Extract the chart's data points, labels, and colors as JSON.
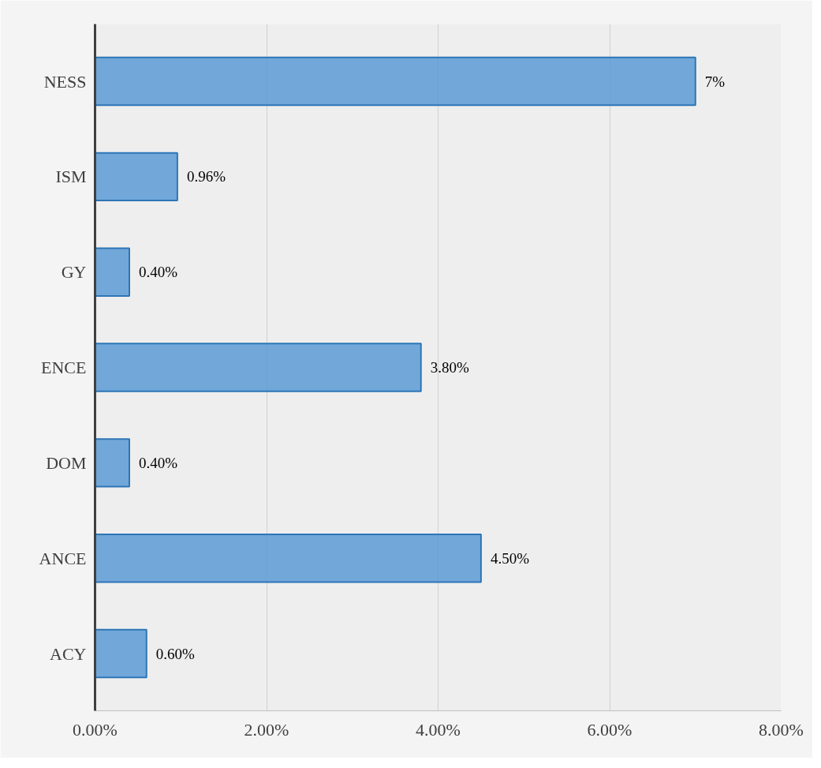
{
  "chart_data": {
    "type": "bar",
    "orientation": "horizontal",
    "categories": [
      "NESS",
      "ISM",
      "GY",
      "ENCE",
      "DOM",
      "ANCE",
      "ACY"
    ],
    "values": [
      7,
      0.96,
      0.4,
      3.8,
      0.4,
      4.5,
      0.6
    ],
    "value_labels": [
      "7%",
      "0.96%",
      "0.40%",
      "3.80%",
      "0.40%",
      "4.50%",
      "0.60%"
    ],
    "color": "#5b9bd5",
    "xlim": [
      0,
      8
    ],
    "xticks": [
      {
        "value": 0,
        "label": "0.00%"
      },
      {
        "value": 2,
        "label": "2.00%"
      },
      {
        "value": 4,
        "label": "4.00%"
      },
      {
        "value": 6,
        "label": "6.00%"
      },
      {
        "value": 8,
        "label": "8.00%"
      }
    ],
    "grid": "x"
  }
}
